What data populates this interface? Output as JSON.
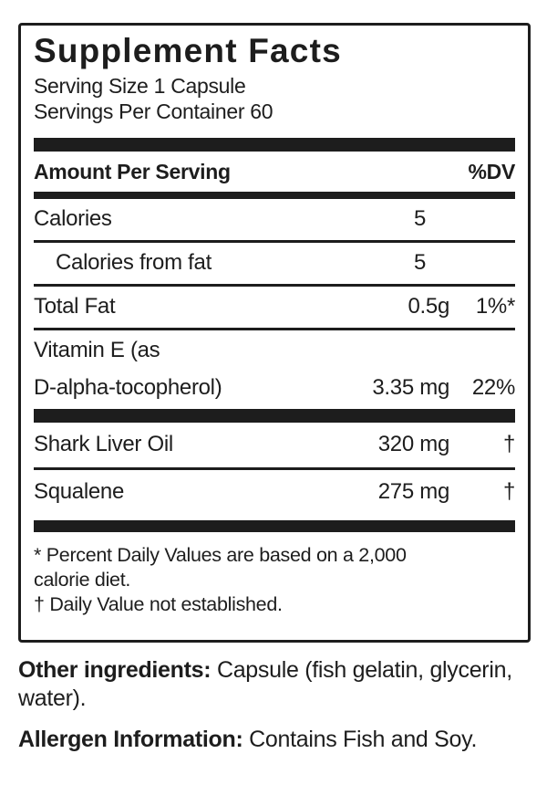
{
  "colors": {
    "ink": "#1d1d1d",
    "background": "#ffffff"
  },
  "panel": {
    "title": "Supplement Facts",
    "serving_size": "Serving Size 1 Capsule",
    "servings_per_container": "Servings Per Container 60",
    "column_header": {
      "left": "Amount Per Serving",
      "right": "%DV"
    },
    "rows": [
      {
        "name": "Calories",
        "amount": "5",
        "dv": ""
      },
      {
        "name": "Calories from fat",
        "amount": "5",
        "dv": "",
        "indented": true
      },
      {
        "name": "Total Fat",
        "amount": "0.5g",
        "dv": "1%*"
      },
      {
        "name_line1": "Vitamin E (as",
        "name_line2": "D-alpha-tocopherol)",
        "amount": "3.35 mg",
        "dv": "22%"
      },
      {
        "name": "Shark Liver Oil",
        "amount": "320 mg",
        "dv": "†"
      },
      {
        "name": "Squalene",
        "amount": "275 mg",
        "dv": "†"
      }
    ],
    "footnotes": {
      "percent_line1": "* Percent Daily Values are based on a 2,000",
      "percent_line2": "calorie diet.",
      "dagger": "† Daily Value not established."
    }
  },
  "below_panel": {
    "other_ingredients": {
      "label": "Other ingredients:",
      "text": " Capsule (fish gelatin, glycerin, water)."
    },
    "allergen": {
      "label": "Allergen Information:",
      "text": " Contains Fish and Soy."
    }
  }
}
